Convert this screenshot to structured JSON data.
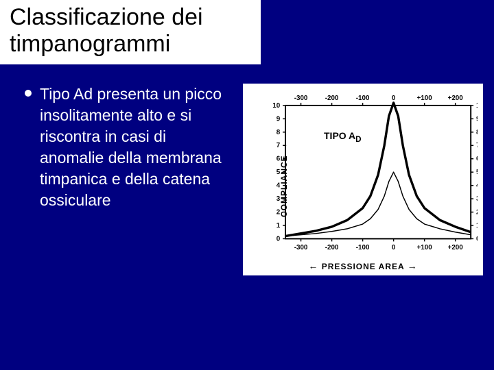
{
  "slide": {
    "title": "Classificazione dei timpanogrammi",
    "bullet_text": "Tipo Ad presenta un picco insolitamente alto e si riscontra in casi di anomalie della membrana timpanica e della catena ossiculare"
  },
  "chart": {
    "type": "line",
    "curve_label": "TIPO A",
    "curve_label_sub": "D",
    "y_axis_label": "COMPLIANCE",
    "x_axis_label": "PRESSIONE AREA",
    "x_ticks": [
      -300,
      -200,
      -100,
      0,
      100,
      200
    ],
    "x_tick_labels": [
      "-300",
      "-200",
      "-100",
      "0",
      "+100",
      "+200"
    ],
    "y_ticks": [
      0,
      1,
      2,
      3,
      4,
      5,
      6,
      7,
      8,
      9,
      10
    ],
    "xlim": [
      -350,
      250
    ],
    "ylim": [
      0,
      10
    ],
    "background_color": "#ffffff",
    "frame_color": "#000000",
    "curve_colors": {
      "main_bold": "#000000",
      "secondary": "#000000"
    },
    "line_widths": {
      "main_bold": 3.5,
      "secondary": 1.5,
      "frame": 2
    },
    "main_curve": [
      [
        -350,
        0.2
      ],
      [
        -300,
        0.4
      ],
      [
        -250,
        0.6
      ],
      [
        -200,
        0.9
      ],
      [
        -150,
        1.4
      ],
      [
        -100,
        2.3
      ],
      [
        -75,
        3.2
      ],
      [
        -50,
        4.8
      ],
      [
        -30,
        7.0
      ],
      [
        -15,
        9.2
      ],
      [
        0,
        10.2
      ],
      [
        15,
        9.2
      ],
      [
        30,
        7.0
      ],
      [
        50,
        4.8
      ],
      [
        75,
        3.2
      ],
      [
        100,
        2.3
      ],
      [
        150,
        1.4
      ],
      [
        200,
        0.9
      ],
      [
        250,
        0.5
      ]
    ],
    "secondary_curve": [
      [
        -350,
        0.2
      ],
      [
        -300,
        0.3
      ],
      [
        -250,
        0.4
      ],
      [
        -200,
        0.55
      ],
      [
        -150,
        0.75
      ],
      [
        -100,
        1.1
      ],
      [
        -75,
        1.5
      ],
      [
        -50,
        2.2
      ],
      [
        -30,
        3.2
      ],
      [
        -15,
        4.3
      ],
      [
        0,
        5.0
      ],
      [
        15,
        4.3
      ],
      [
        30,
        3.2
      ],
      [
        50,
        2.2
      ],
      [
        75,
        1.5
      ],
      [
        100,
        1.1
      ],
      [
        150,
        0.75
      ],
      [
        200,
        0.5
      ],
      [
        250,
        0.3
      ]
    ]
  },
  "colors": {
    "slide_bg": "#000080",
    "title_bg": "#ffffff",
    "title_text": "#000000",
    "body_text": "#ffffff"
  }
}
